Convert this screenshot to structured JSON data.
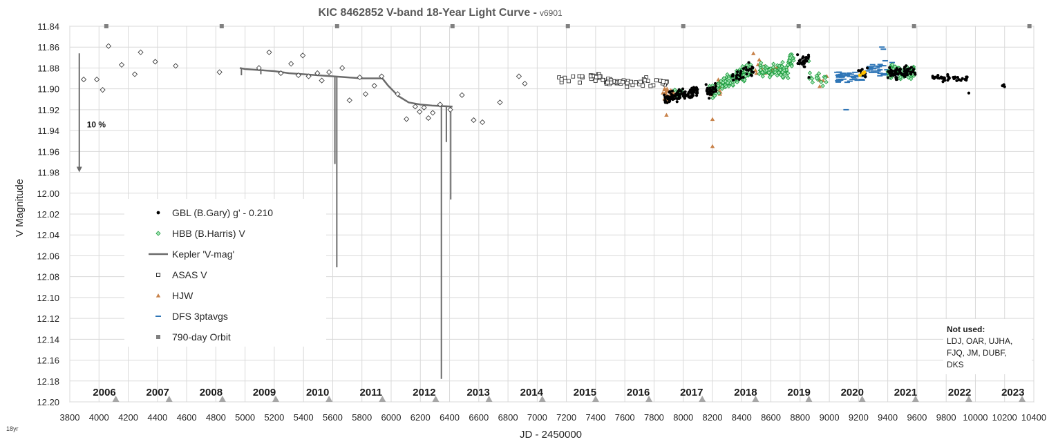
{
  "chart_data": {
    "type": "scatter",
    "title": "KIC 8462852 V-band 18-Year Light Curve - ",
    "version": "v6901",
    "xlabel": "JD - 2450000",
    "ylabel": "V Magnitude",
    "corner_label": "18yr",
    "xlim": [
      3800,
      10400
    ],
    "ylim": [
      11.84,
      12.2
    ],
    "y_inverted": true,
    "x_ticks": [
      3800,
      4000,
      4200,
      4400,
      4600,
      4800,
      5000,
      5200,
      5400,
      5600,
      5800,
      6000,
      6200,
      6400,
      6600,
      6800,
      7000,
      7200,
      7400,
      7600,
      7800,
      8000,
      8200,
      8400,
      8600,
      8800,
      9000,
      9200,
      9400,
      9600,
      9800,
      10000,
      10200,
      10400
    ],
    "y_ticks": [
      "11.84",
      "11.86",
      "11.88",
      "11.90",
      "11.92",
      "11.94",
      "11.96",
      "11.98",
      "12.00",
      "12.02",
      "12.04",
      "12.06",
      "12.08",
      "12.10",
      "12.12",
      "12.14",
      "12.16",
      "12.18",
      "12.20"
    ],
    "year_labels": [
      {
        "label": "2006",
        "x": 3895
      },
      {
        "label": "2007",
        "x": 4260
      },
      {
        "label": "2008",
        "x": 4625
      },
      {
        "label": "2009",
        "x": 4990
      },
      {
        "label": "2010",
        "x": 5355
      },
      {
        "label": "2011",
        "x": 5720
      },
      {
        "label": "2012",
        "x": 6085
      },
      {
        "label": "2013",
        "x": 6455
      },
      {
        "label": "2014",
        "x": 6820
      },
      {
        "label": "2015",
        "x": 7185
      },
      {
        "label": "2016",
        "x": 7550
      },
      {
        "label": "2017",
        "x": 7915
      },
      {
        "label": "2018",
        "x": 8285
      },
      {
        "label": "2019",
        "x": 8650
      },
      {
        "label": "2020",
        "x": 9015
      },
      {
        "label": "2021",
        "x": 9380
      },
      {
        "label": "2022",
        "x": 9750
      },
      {
        "label": "2023",
        "x": 10115
      }
    ],
    "grid": true,
    "legend_placement": "lower-left",
    "annotation_10pct": {
      "label": "10 %",
      "x": 3865,
      "y_top": 11.866,
      "y_bottom": 11.98
    },
    "not_used": {
      "title": "Not used:",
      "lines": [
        "LDJ, OAR, UJHA,",
        "FJQ, JM, DUBF,",
        "DKS"
      ]
    },
    "orbit_markers_bottom": [
      4115,
      4480,
      4845,
      5210,
      5575,
      5940,
      6305,
      6670,
      7035,
      7400,
      7765,
      8130,
      8495,
      8860,
      9225,
      9590,
      9955,
      10320
    ],
    "orbit_markers_top": [
      4050,
      4840,
      5630,
      6420,
      7210,
      8000,
      8790,
      9580,
      10370
    ],
    "series": [
      {
        "name": "GBL (B.Gary) g' - 0.210",
        "marker": "dot",
        "color": "#000000"
      },
      {
        "name": "HBB (B.Harris) V",
        "marker": "diamond",
        "color": "#22b14c"
      },
      {
        "name": "Kepler 'V-mag'",
        "marker": "line",
        "color": "#6b6b6b"
      },
      {
        "name": "ASAS V",
        "marker": "square-open",
        "color": "#000000"
      },
      {
        "name": "HJW",
        "marker": "triangle",
        "color": "#c8824a"
      },
      {
        "name": "DFS 3ptavgs",
        "marker": "dash",
        "color": "#2e75b6"
      },
      {
        "name": "790-day Orbit",
        "marker": "square",
        "color": "#808080"
      }
    ],
    "asas_old": [
      [
        3895,
        11.891
      ],
      [
        3985,
        11.891
      ],
      [
        4025,
        11.901
      ],
      [
        4065,
        11.859
      ],
      [
        4155,
        11.877
      ],
      [
        4245,
        11.886
      ],
      [
        4285,
        11.865
      ],
      [
        4385,
        11.874
      ],
      [
        4525,
        11.878
      ],
      [
        4825,
        11.884
      ],
      [
        5095,
        11.88
      ],
      [
        5165,
        11.865
      ],
      [
        5245,
        11.885
      ],
      [
        5315,
        11.876
      ],
      [
        5365,
        11.887
      ],
      [
        5395,
        11.868
      ],
      [
        5435,
        11.888
      ],
      [
        5495,
        11.885
      ],
      [
        5525,
        11.892
      ],
      [
        5575,
        11.884
      ],
      [
        5665,
        11.88
      ],
      [
        5715,
        11.911
      ],
      [
        5785,
        11.889
      ],
      [
        5825,
        11.905
      ],
      [
        5885,
        11.897
      ],
      [
        5935,
        11.888
      ],
      [
        6045,
        11.905
      ],
      [
        6105,
        11.929
      ],
      [
        6165,
        11.917
      ],
      [
        6195,
        11.922
      ],
      [
        6225,
        11.918
      ],
      [
        6255,
        11.928
      ],
      [
        6285,
        11.923
      ],
      [
        6335,
        11.915
      ],
      [
        6405,
        11.92
      ],
      [
        6485,
        11.906
      ],
      [
        6565,
        11.93
      ],
      [
        6625,
        11.932
      ],
      [
        6745,
        11.913
      ],
      [
        6875,
        11.888
      ],
      [
        6915,
        11.895
      ]
    ],
    "kepler": [
      [
        4964,
        11.88
      ],
      [
        5000,
        11.881
      ],
      [
        5100,
        11.882
      ],
      [
        5200,
        11.883
      ],
      [
        5300,
        11.885
      ],
      [
        5400,
        11.886
      ],
      [
        5500,
        11.887
      ],
      [
        5600,
        11.888
      ],
      [
        5700,
        11.889
      ],
      [
        5800,
        11.89
      ],
      [
        5850,
        11.89
      ],
      [
        5900,
        11.89
      ],
      [
        5940,
        11.89
      ],
      [
        5980,
        11.897
      ],
      [
        6050,
        11.907
      ],
      [
        6120,
        11.913
      ],
      [
        6200,
        11.915
      ],
      [
        6280,
        11.916
      ],
      [
        6420,
        11.917
      ]
    ],
    "kepler_dips": [
      [
        4975,
        11.88,
        11.887
      ],
      [
        5108,
        11.882,
        11.886
      ],
      [
        5615,
        11.888,
        11.972
      ],
      [
        5628,
        11.888,
        12.071
      ],
      [
        6344,
        11.916,
        12.178
      ],
      [
        6378,
        11.916,
        11.951
      ],
      [
        6408,
        11.917,
        12.006
      ]
    ]
  },
  "icons": {
    "orbit_marker": "triangle-marker-icon"
  }
}
